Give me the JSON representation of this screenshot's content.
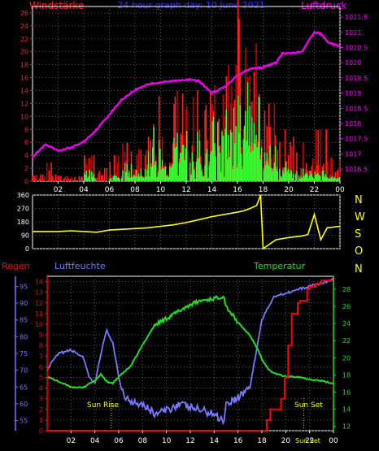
{
  "header": {
    "left_label": "Windstärke",
    "center_label": "24 hour graph day: 10 June 2021",
    "right_label": "Luftdruck"
  },
  "wind_dir_labels": [
    "N",
    "W",
    "S",
    "O",
    "N"
  ],
  "bottom_labels": {
    "regen": "Regen",
    "luftfeuchte": "Luftfeuchte",
    "temperatur": "Temperatur",
    "sun_rise": "Sun Rise",
    "sun_set": "Sun Set",
    "sun_set_small": "Sun Set"
  },
  "colors": {
    "background": "#000000",
    "frame": "#ffffff",
    "windstaerke": "#ff2020",
    "gusts": "#cc0000",
    "wind_avg": "#33ff33",
    "luftdruck": "#ee00ee",
    "wind_dir": "#ffff00",
    "regen": "#ff0000",
    "luftfeuchte": "#7777ff",
    "temperatur": "#22dd22",
    "grid": "#555555",
    "title": "#3333ff"
  },
  "chart_data": [
    {
      "type": "bar",
      "name": "wind-pressure",
      "x_ticks": [
        "02",
        "04",
        "06",
        "08",
        "10",
        "12",
        "14",
        "16",
        "18",
        "20",
        "22",
        "00"
      ],
      "y_left_ticks": [
        "0",
        "2",
        "4",
        "6",
        "8",
        "10",
        "12",
        "14",
        "16",
        "18",
        "20",
        "22",
        "24",
        "26"
      ],
      "ylim_left": [
        0,
        27
      ],
      "y_right_ticks": [
        "1016.5",
        "1017",
        "1017.5",
        "1018",
        "1018.5",
        "1019",
        "1019.5",
        "1020",
        "1020.5",
        "1021",
        "1021.5"
      ],
      "ylim_right": [
        1016.1,
        1021.85
      ],
      "x_range_hours": [
        0,
        24
      ],
      "pressure": {
        "x": [
          0,
          1,
          2,
          3,
          4,
          5,
          6,
          7,
          8,
          9,
          10,
          11,
          12,
          13,
          14,
          15,
          16,
          17,
          18,
          19,
          19.5,
          20,
          21,
          22,
          22.5,
          23,
          23.5,
          24
        ],
        "y": [
          1016.9,
          1017.3,
          1017.1,
          1017.2,
          1017.4,
          1017.8,
          1018.3,
          1018.8,
          1019.1,
          1019.3,
          1019.35,
          1019.4,
          1019.45,
          1019.4,
          1019.0,
          1019.2,
          1019.6,
          1019.8,
          1019.85,
          1020.0,
          1020.3,
          1020.3,
          1020.35,
          1021.0,
          1020.95,
          1020.7,
          1020.6,
          1020.55
        ]
      },
      "gust_by_hour": [
        1,
        4,
        1,
        1,
        4,
        2,
        4,
        6,
        5,
        14,
        10,
        14,
        15,
        15,
        16,
        18,
        30,
        22,
        12,
        8,
        7,
        6,
        8,
        4
      ],
      "avg_by_hour": [
        0,
        0,
        0,
        0,
        2,
        0,
        1,
        3,
        2,
        9,
        6,
        8,
        9,
        8,
        10,
        14,
        16,
        14,
        6,
        3,
        2,
        2,
        2,
        1
      ]
    },
    {
      "type": "line",
      "name": "wind-direction",
      "y_ticks": [
        "0",
        "90",
        "180",
        "270",
        "360"
      ],
      "ylim": [
        0,
        360
      ],
      "x": [
        0,
        2,
        3,
        5,
        6,
        8,
        9,
        10,
        11,
        12,
        13,
        14,
        15,
        16,
        16.5,
        17,
        17.5,
        17.8,
        18,
        19,
        20,
        21,
        21.5,
        22,
        22.5,
        23,
        24
      ],
      "y": [
        115,
        115,
        120,
        110,
        125,
        135,
        140,
        150,
        160,
        175,
        195,
        215,
        230,
        245,
        255,
        270,
        290,
        360,
        0,
        60,
        75,
        85,
        95,
        230,
        60,
        140,
        150
      ]
    },
    {
      "type": "line",
      "name": "weather-bottom",
      "x_ticks": [
        "02",
        "04",
        "06",
        "08",
        "10",
        "12",
        "14",
        "16",
        "18",
        "20",
        "22",
        "00"
      ],
      "regen_ticks": [
        "0",
        "1",
        "2",
        "3",
        "4",
        "5",
        "6",
        "7",
        "8",
        "9",
        "10",
        "11",
        "12",
        "13",
        "14"
      ],
      "regen_ylim": [
        0,
        14.5
      ],
      "feuchte_ticks": [
        "55",
        "60",
        "65",
        "70",
        "75",
        "80",
        "85",
        "90",
        "95"
      ],
      "feuchte_ylim": [
        52,
        98
      ],
      "temp_ticks": [
        "12",
        "14",
        "16",
        "18",
        "20",
        "22",
        "24",
        "26",
        "28"
      ],
      "temp_ylim": [
        11.5,
        29.5
      ],
      "series": [
        {
          "name": "Luftfeuchte",
          "x": [
            0,
            0.5,
            1,
            2,
            3,
            3.5,
            4,
            4.5,
            5,
            5.5,
            6,
            6.5,
            7,
            8,
            9,
            10,
            11,
            12,
            13,
            14,
            14.8,
            15,
            16,
            17,
            17.5,
            18,
            19,
            20,
            21,
            22,
            23,
            24
          ],
          "y": [
            70,
            73,
            75,
            76,
            74,
            68,
            66,
            75,
            82,
            78,
            68,
            62,
            61,
            60,
            57,
            58,
            60,
            59,
            58,
            57,
            55,
            60,
            62,
            65,
            75,
            85,
            92,
            93,
            94,
            95,
            96,
            97
          ]
        },
        {
          "name": "Temperatur",
          "x": [
            0,
            1,
            2,
            3,
            3.5,
            4,
            4.5,
            5,
            5.5,
            6,
            7,
            8,
            9,
            10,
            11,
            12,
            13,
            14,
            14.8,
            15,
            16,
            17,
            17.8,
            18,
            18.5,
            19,
            20,
            21,
            22,
            23,
            24
          ],
          "y": [
            17.8,
            17.2,
            16.6,
            16.5,
            17.0,
            17.3,
            18.1,
            17.2,
            17.0,
            17.8,
            19.0,
            21.5,
            23.8,
            24.6,
            25.4,
            26.2,
            26.7,
            26.9,
            27.2,
            26.0,
            24.1,
            22.6,
            20.6,
            19.8,
            18.7,
            18.2,
            17.8,
            17.8,
            17.5,
            17.3,
            17.0
          ]
        },
        {
          "name": "Regen",
          "x": [
            0,
            18.2,
            18.4,
            18.7,
            19.3,
            19.6,
            19.9,
            20.2,
            20.5,
            21,
            21.2,
            21.8,
            22,
            22.5,
            23,
            24
          ],
          "y": [
            0,
            0,
            1,
            2,
            2,
            3,
            5,
            8,
            11,
            12,
            12.2,
            13.3,
            13.5,
            13.8,
            14.1,
            14.4
          ]
        }
      ],
      "sun_rise_hour": 5.35,
      "sun_set_hour": 21.5
    }
  ]
}
